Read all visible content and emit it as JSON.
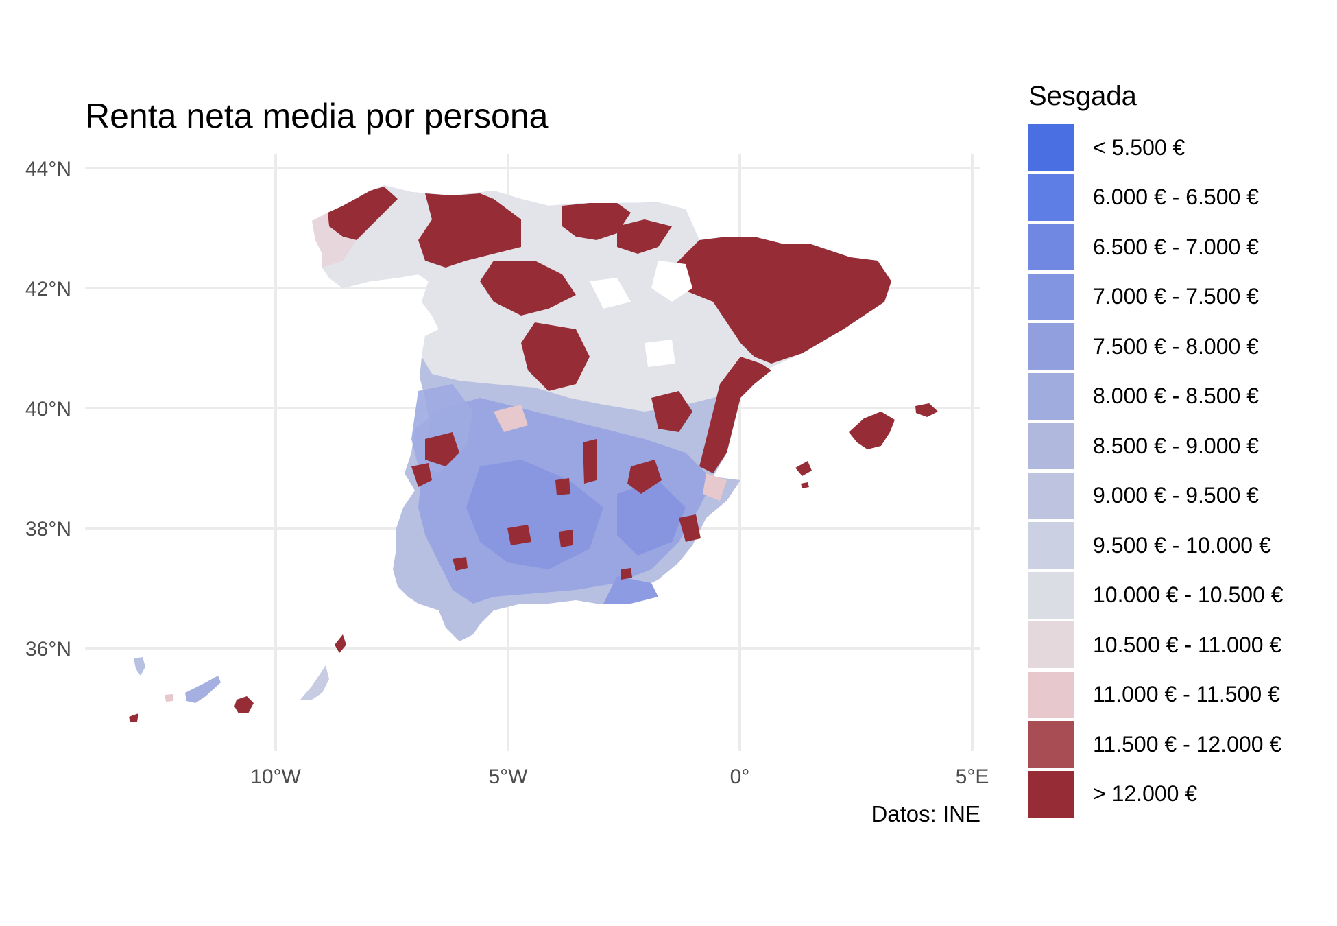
{
  "title": "Renta neta media por persona",
  "caption": "Datos: INE",
  "axes": {
    "y_ticks": [
      "44°N",
      "42°N",
      "40°N",
      "38°N",
      "36°N"
    ],
    "x_ticks": [
      "10°W",
      "5°W",
      "0°",
      "5°E"
    ],
    "grid": true
  },
  "legend": {
    "title": "Sesgada",
    "placement": "right",
    "items": [
      {
        "label": "< 5.500 €",
        "color": "#4a6fe3"
      },
      {
        "label": "6.000 € - 6.500 €",
        "color": "#5e7de5"
      },
      {
        "label": "6.500 € - 7.000 €",
        "color": "#7088e1"
      },
      {
        "label": "7.000 € - 7.500 €",
        "color": "#8195e0"
      },
      {
        "label": "7.500 € - 8.000 €",
        "color": "#929fdf"
      },
      {
        "label": "8.000 € - 8.500 €",
        "color": "#a1acde"
      },
      {
        "label": "8.500 € - 9.000 €",
        "color": "#b0b8de"
      },
      {
        "label": "9.000 € - 9.500 €",
        "color": "#bec4e0"
      },
      {
        "label": "9.500 € - 10.000 €",
        "color": "#ccd0e3"
      },
      {
        "label": "10.000 € - 10.500 €",
        "color": "#dbdde5"
      },
      {
        "label": "10.500 € - 11.000 €",
        "color": "#e4d8dc"
      },
      {
        "label": "11.000 € - 11.500 €",
        "color": "#e6c8cd"
      },
      {
        "label": "11.500 € - 12.000 €",
        "color": "#a84d54"
      },
      {
        "label": "> 12.000 €",
        "color": "#962d36"
      }
    ]
  },
  "map": {
    "region": "Spain",
    "colors": {
      "high": "#962d36",
      "low": "#4a6fe3",
      "mid": "#dbdde5",
      "blue_mid": "#aab4e0",
      "pink": "#e6c8cd"
    }
  }
}
